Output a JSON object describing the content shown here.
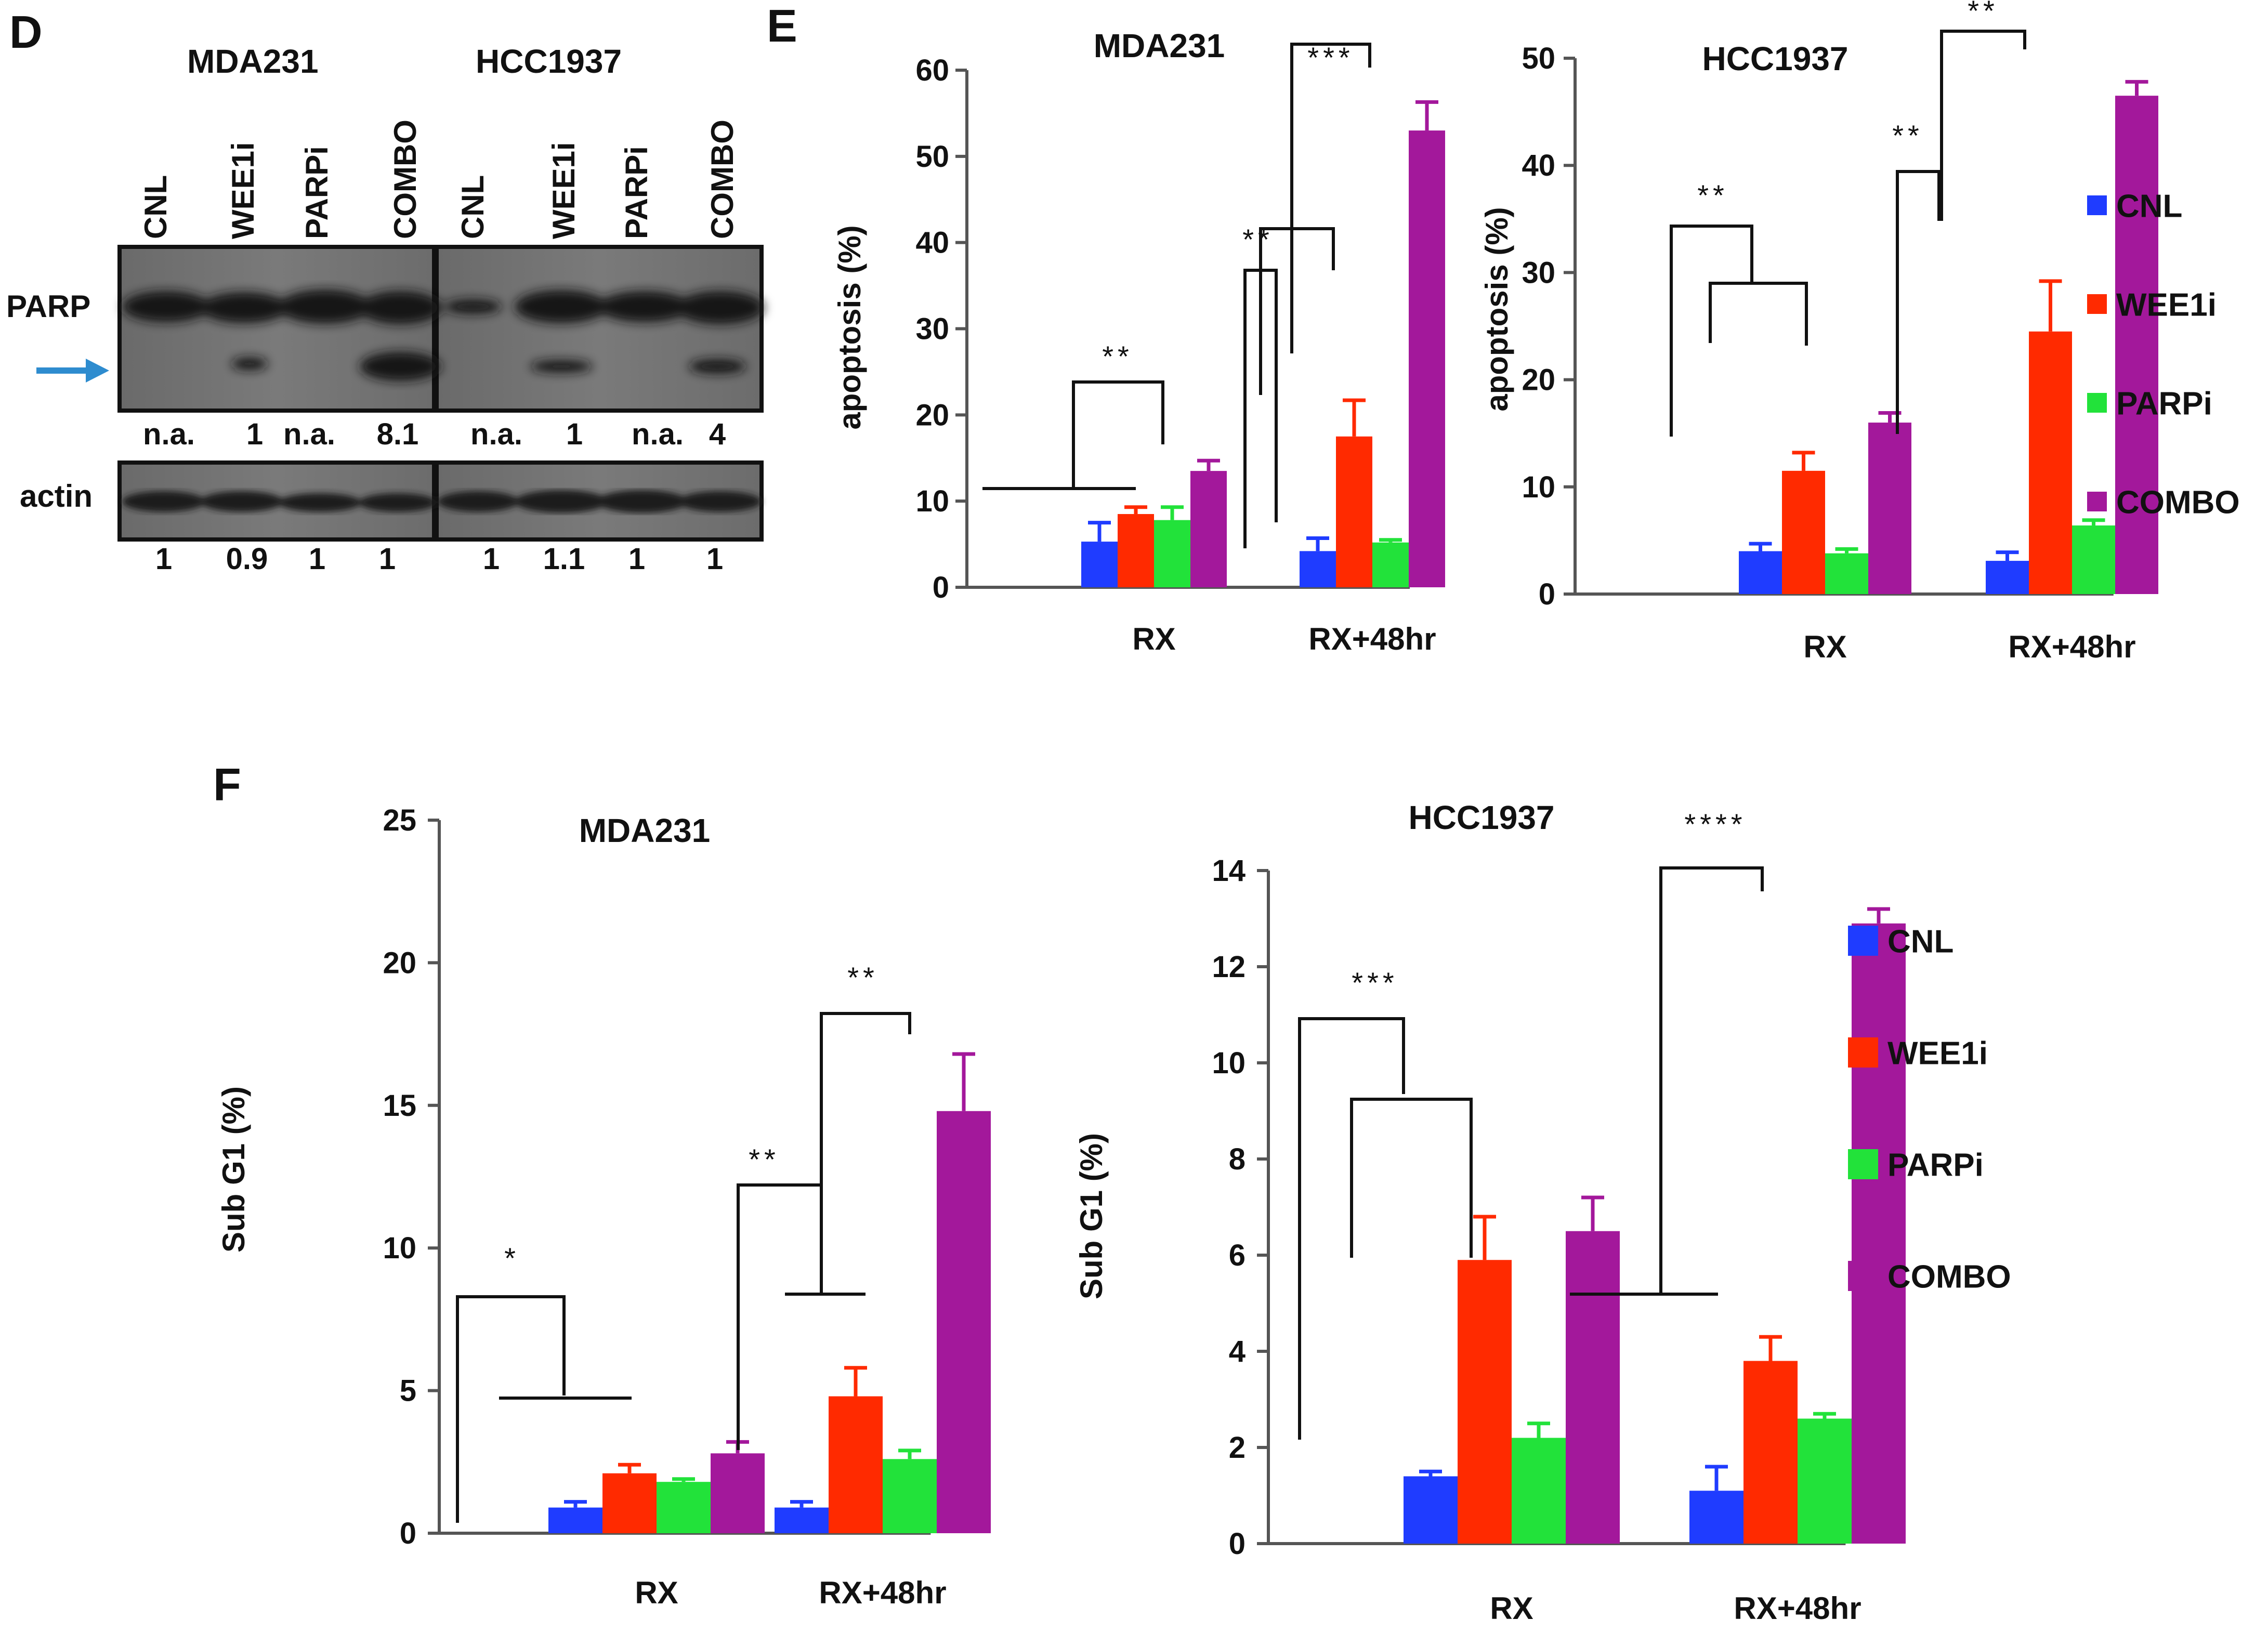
{
  "colors": {
    "CNL": "#1f3cff",
    "WEE1i": "#ff2a00",
    "PARPi": "#22e23a",
    "COMBO": "#a3189b"
  },
  "panelD": {
    "letter": "D",
    "groups": [
      {
        "title": "MDA231",
        "lanes": [
          "CNL",
          "WEE1i",
          "PARPi",
          "COMBO"
        ],
        "parp_quant": [
          "n.a.",
          "1",
          "n.a.",
          "8.1"
        ],
        "actin_quant": [
          "1",
          "0.9",
          "1",
          "1"
        ]
      },
      {
        "title": "HCC1937",
        "lanes": [
          "CNL",
          "WEE1i",
          "PARPi",
          "COMBO"
        ],
        "parp_quant": [
          "n.a.",
          "1",
          "n.a.",
          "4"
        ],
        "actin_quant": [
          "1",
          "1.1",
          "1",
          "1"
        ]
      }
    ],
    "rows": {
      "parp": "PARP",
      "actin": "actin"
    }
  },
  "panelE_letter": "E",
  "panelF_letter": "F",
  "chart_data": [
    {
      "id": "E-MDA231",
      "type": "bar",
      "title": "MDA231",
      "ylabel": "apoptosis (%)",
      "ylim": [
        0,
        60
      ],
      "yticks": [
        0,
        10,
        20,
        30,
        40,
        50,
        60
      ],
      "categories": [
        "RX",
        "RX+48hr"
      ],
      "series": [
        {
          "name": "CNL",
          "values": [
            5.3,
            4.2
          ],
          "errors": [
            2.2,
            1.5
          ]
        },
        {
          "name": "WEE1i",
          "values": [
            8.5,
            17.5
          ],
          "errors": [
            0.8,
            4.2
          ]
        },
        {
          "name": "PARPi",
          "values": [
            7.8,
            5.2
          ],
          "errors": [
            1.5,
            0.3
          ]
        },
        {
          "name": "COMBO",
          "values": [
            13.5,
            53.0
          ],
          "errors": [
            1.2,
            3.3
          ]
        }
      ],
      "significance": [
        "**",
        "**",
        "***"
      ]
    },
    {
      "id": "E-HCC1937",
      "type": "bar",
      "title": "HCC1937",
      "ylabel": "apoptosis (%)",
      "ylim": [
        0,
        50
      ],
      "yticks": [
        0,
        10,
        20,
        30,
        40,
        50
      ],
      "categories": [
        "RX",
        "RX+48hr"
      ],
      "series": [
        {
          "name": "CNL",
          "values": [
            4.0,
            3.1
          ],
          "errors": [
            0.7,
            0.8
          ]
        },
        {
          "name": "WEE1i",
          "values": [
            11.5,
            24.5
          ],
          "errors": [
            1.7,
            4.7
          ]
        },
        {
          "name": "PARPi",
          "values": [
            3.8,
            6.4
          ],
          "errors": [
            0.4,
            0.5
          ]
        },
        {
          "name": "COMBO",
          "values": [
            16.0,
            46.5
          ],
          "errors": [
            0.9,
            1.3
          ]
        }
      ],
      "significance": [
        "**",
        "**",
        "**"
      ]
    },
    {
      "id": "F-MDA231",
      "type": "bar",
      "title": "MDA231",
      "ylabel": "Sub G1 (%)",
      "ylim": [
        0,
        25
      ],
      "yticks": [
        0,
        5,
        10,
        15,
        20,
        25
      ],
      "categories": [
        "RX",
        "RX+48hr"
      ],
      "series": [
        {
          "name": "CNL",
          "values": [
            0.9,
            0.9
          ],
          "errors": [
            0.2,
            0.2
          ]
        },
        {
          "name": "WEE1i",
          "values": [
            2.1,
            4.8
          ],
          "errors": [
            0.3,
            1.0
          ]
        },
        {
          "name": "PARPi",
          "values": [
            1.8,
            2.6
          ],
          "errors": [
            0.1,
            0.3
          ]
        },
        {
          "name": "COMBO",
          "values": [
            2.8,
            14.8
          ],
          "errors": [
            0.4,
            2.0
          ]
        }
      ],
      "significance": [
        "*",
        "**",
        "**"
      ]
    },
    {
      "id": "F-HCC1937",
      "type": "bar",
      "title": "HCC1937",
      "ylabel": "Sub G1 (%)",
      "ylim": [
        0,
        14
      ],
      "yticks": [
        0,
        2,
        4,
        6,
        8,
        10,
        12,
        14
      ],
      "categories": [
        "RX",
        "RX+48hr"
      ],
      "series": [
        {
          "name": "CNL",
          "values": [
            1.4,
            1.1
          ],
          "errors": [
            0.1,
            0.5
          ]
        },
        {
          "name": "WEE1i",
          "values": [
            5.9,
            3.8
          ],
          "errors": [
            0.9,
            0.5
          ]
        },
        {
          "name": "PARPi",
          "values": [
            2.2,
            2.6
          ],
          "errors": [
            0.3,
            0.1
          ]
        },
        {
          "name": "COMBO",
          "values": [
            6.5,
            12.9
          ],
          "errors": [
            0.7,
            0.3
          ]
        }
      ],
      "significance": [
        "***",
        "****"
      ]
    }
  ],
  "legend": [
    "CNL",
    "WEE1i",
    "PARPi",
    "COMBO"
  ]
}
